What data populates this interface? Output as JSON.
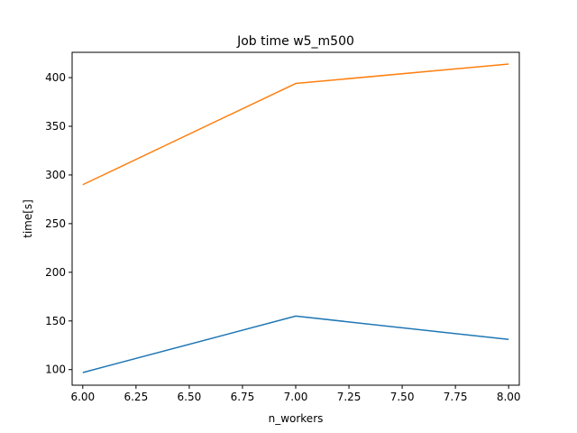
{
  "chart_data": {
    "type": "line",
    "title": "Job time w5_m500",
    "xlabel": "n_workers",
    "ylabel": "time[s]",
    "xlim": [
      5.95,
      8.05
    ],
    "ylim": [
      84,
      426
    ],
    "xticks": [
      "6.00",
      "6.25",
      "6.50",
      "6.75",
      "7.00",
      "7.25",
      "7.50",
      "7.75",
      "8.00"
    ],
    "yticks": [
      "100",
      "150",
      "200",
      "250",
      "300",
      "350",
      "400"
    ],
    "grid": false,
    "x": [
      6,
      7,
      8
    ],
    "series": [
      {
        "values": [
          97,
          155,
          131
        ],
        "color": "#1f77b4"
      },
      {
        "values": [
          290,
          394,
          414
        ],
        "color": "#ff7f0e"
      }
    ]
  }
}
